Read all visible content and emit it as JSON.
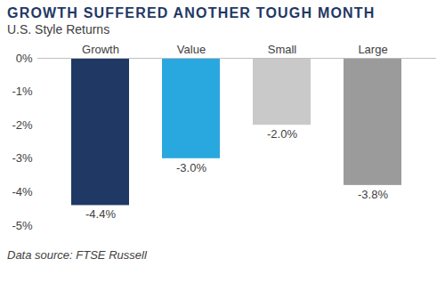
{
  "chart_data": {
    "type": "bar",
    "title": "GROWTH SUFFERED ANOTHER TOUGH MONTH",
    "subtitle": "U.S. Style Returns",
    "caption": "Data source: FTSE Russell",
    "categories": [
      "Growth",
      "Value",
      "Small",
      "Large"
    ],
    "values": [
      -4.4,
      -3.0,
      -2.0,
      -3.8
    ],
    "value_labels": [
      "-4.4%",
      "-3.0%",
      "-2.0%",
      "-3.8%"
    ],
    "colors": [
      "#1f3864",
      "#29a8e0",
      "#c9c9c9",
      "#9b9b9b"
    ],
    "ylim": [
      -5,
      0
    ],
    "yticks": [
      {
        "value": 0,
        "label": "0%"
      },
      {
        "value": -1,
        "label": "-1%"
      },
      {
        "value": -2,
        "label": "-2%"
      },
      {
        "value": -3,
        "label": "-3%"
      },
      {
        "value": -4,
        "label": "-4%"
      },
      {
        "value": -5,
        "label": "-5%"
      }
    ],
    "grid": false,
    "data_labels": true
  }
}
